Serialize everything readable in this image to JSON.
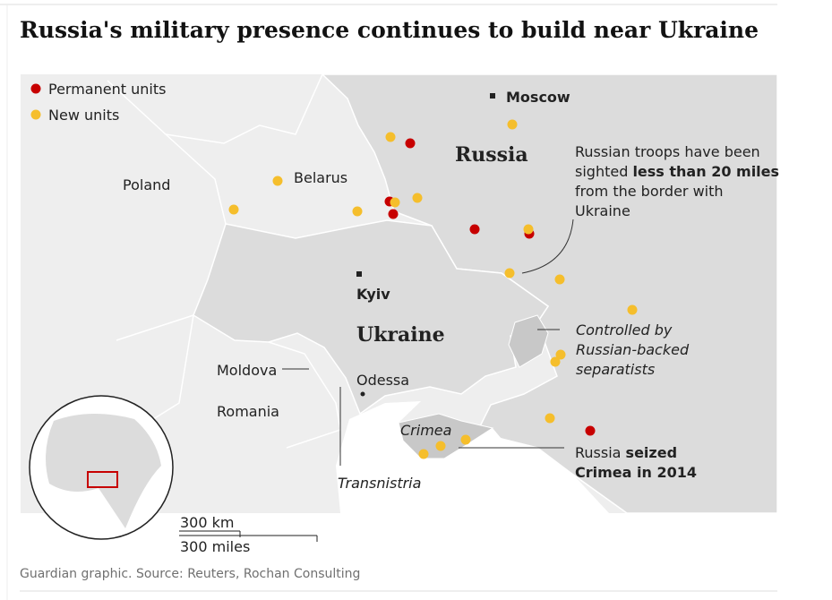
{
  "title": "Russia's military presence continues to build near Ukraine",
  "legend": {
    "permanent": "Permanent units",
    "new": "New units"
  },
  "places": {
    "moscow": "Moscow",
    "russia": "Russia",
    "poland": "Poland",
    "belarus": "Belarus",
    "kyiv": "Kyiv",
    "ukraine": "Ukraine",
    "moldova": "Moldova",
    "romania": "Romania",
    "odessa": "Odessa",
    "crimea": "Crimea",
    "transnistria": "Transnistria"
  },
  "annotations": {
    "troops": [
      {
        "regular": "Russian troops have been"
      },
      {
        "regular": "sighted ",
        "bold": "less than 20 miles"
      },
      {
        "regular": "from the border with"
      },
      {
        "regular": "Ukraine"
      }
    ],
    "separatists": [
      "Controlled by",
      "Russian-backed",
      "separatists"
    ],
    "crimea": [
      {
        "regular": "Russia ",
        "bold": "seized"
      },
      {
        "bold": "Crimea in 2014"
      }
    ]
  },
  "scale": {
    "km": "300 km",
    "miles": "300 miles"
  },
  "source": "Guardian graphic. Source: Reuters, Rochan Consulting"
}
